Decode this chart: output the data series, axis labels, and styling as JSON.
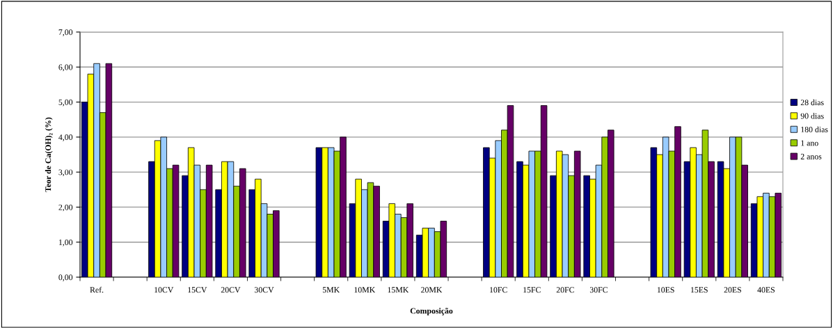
{
  "chart_data": {
    "type": "bar",
    "xlabel": "Composição",
    "ylabel": "Teor de Ca(OH)₂ (%)",
    "categories": [
      "Ref.",
      null,
      "10CV",
      "15CV",
      "20CV",
      "30CV",
      null,
      "5MK",
      "10MK",
      "15MK",
      "20MK",
      null,
      "10FC",
      "15FC",
      "20FC",
      "30FC",
      null,
      "10ES",
      "15ES",
      "20ES",
      "40ES"
    ],
    "series": [
      {
        "name": "28 dias",
        "color": "#000080",
        "values": [
          5.0,
          null,
          3.3,
          2.9,
          2.5,
          2.5,
          null,
          3.7,
          2.1,
          1.6,
          1.2,
          null,
          3.7,
          3.3,
          2.9,
          2.9,
          null,
          3.7,
          3.3,
          3.3,
          2.1
        ]
      },
      {
        "name": "90 dias",
        "color": "#ffff00",
        "values": [
          5.8,
          null,
          3.9,
          3.7,
          3.3,
          2.8,
          null,
          3.7,
          2.8,
          2.1,
          1.4,
          null,
          3.4,
          3.2,
          3.6,
          2.8,
          null,
          3.5,
          3.7,
          3.1,
          2.3
        ]
      },
      {
        "name": "180 dias",
        "color": "#99ccff",
        "values": [
          6.1,
          null,
          4.0,
          3.2,
          3.3,
          2.1,
          null,
          3.7,
          2.5,
          1.8,
          1.4,
          null,
          3.9,
          3.6,
          3.5,
          3.2,
          null,
          4.0,
          3.5,
          4.0,
          2.4
        ]
      },
      {
        "name": "1 ano",
        "color": "#99cc00",
        "values": [
          4.7,
          null,
          3.1,
          2.5,
          2.6,
          1.8,
          null,
          3.6,
          2.7,
          1.7,
          1.3,
          null,
          4.2,
          3.6,
          2.9,
          4.0,
          null,
          3.6,
          4.2,
          4.0,
          2.3
        ]
      },
      {
        "name": "2 anos",
        "color": "#660066",
        "values": [
          6.1,
          null,
          3.2,
          3.2,
          3.1,
          1.9,
          null,
          4.0,
          2.6,
          2.1,
          1.6,
          null,
          4.9,
          4.9,
          3.6,
          4.2,
          null,
          4.3,
          3.3,
          3.2,
          2.4
        ]
      }
    ],
    "ylim": [
      0,
      7
    ],
    "yticks": [
      {
        "value": 0,
        "label": "0,00"
      },
      {
        "value": 1,
        "label": "1,00"
      },
      {
        "value": 2,
        "label": "2,00"
      },
      {
        "value": 3,
        "label": "3,00"
      },
      {
        "value": 4,
        "label": "4,00"
      },
      {
        "value": 5,
        "label": "5,00"
      },
      {
        "value": 6,
        "label": "6,00"
      },
      {
        "value": 7,
        "label": "7,00"
      }
    ],
    "grid": "y",
    "legend": "right"
  }
}
